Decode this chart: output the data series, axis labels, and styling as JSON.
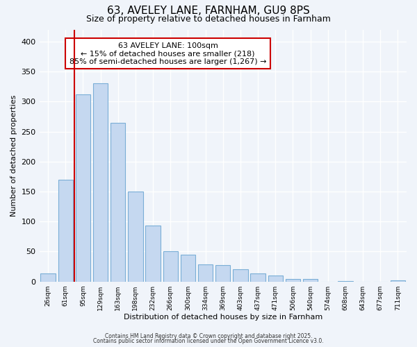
{
  "title": "63, AVELEY LANE, FARNHAM, GU9 8PS",
  "subtitle": "Size of property relative to detached houses in Farnham",
  "xlabel": "Distribution of detached houses by size in Farnham",
  "ylabel": "Number of detached properties",
  "bar_color": "#c5d8f0",
  "bar_edge_color": "#7aaed6",
  "background_color": "#f0f4fa",
  "plot_bg_color": "#f0f4fa",
  "grid_color": "#ffffff",
  "categories": [
    "26sqm",
    "61sqm",
    "95sqm",
    "129sqm",
    "163sqm",
    "198sqm",
    "232sqm",
    "266sqm",
    "300sqm",
    "334sqm",
    "369sqm",
    "403sqm",
    "437sqm",
    "471sqm",
    "506sqm",
    "540sqm",
    "574sqm",
    "608sqm",
    "643sqm",
    "677sqm",
    "711sqm"
  ],
  "values": [
    13,
    170,
    312,
    330,
    265,
    150,
    93,
    50,
    45,
    28,
    27,
    21,
    13,
    10,
    4,
    4,
    0,
    1,
    0,
    0,
    2
  ],
  "vline_x": 2,
  "vline_color": "#cc0000",
  "annotation_text": "63 AVELEY LANE: 100sqm\n← 15% of detached houses are smaller (218)\n85% of semi-detached houses are larger (1,267) →",
  "annotation_box_color": "#ffffff",
  "annotation_box_edge_color": "#cc0000",
  "ylim": [
    0,
    420
  ],
  "yticks": [
    0,
    50,
    100,
    150,
    200,
    250,
    300,
    350,
    400
  ],
  "footnote1": "Contains HM Land Registry data © Crown copyright and database right 2025.",
  "footnote2": "Contains public sector information licensed under the Open Government Licence v3.0."
}
